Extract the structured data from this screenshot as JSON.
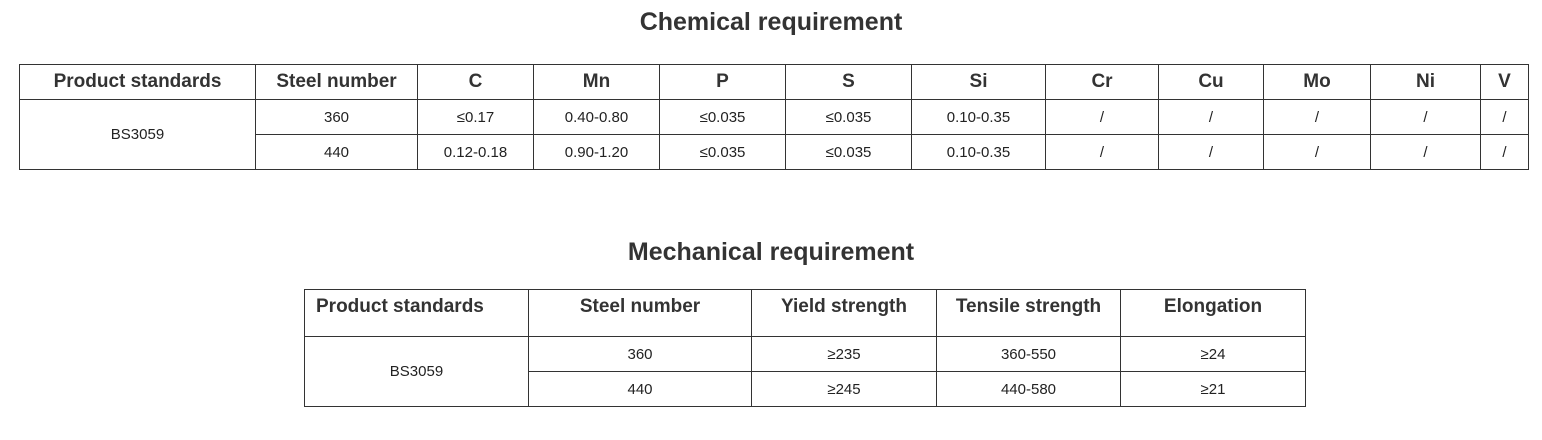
{
  "sections": [
    {
      "title": "Chemical requirement",
      "headers": [
        "Product standards",
        "Steel number",
        "C",
        "Mn",
        "P",
        "S",
        "Si",
        "Cr",
        "Cu",
        "Mo",
        "Ni",
        "V"
      ],
      "standard": "BS3059",
      "rows": [
        [
          "360",
          "≤0.17",
          "0.40-0.80",
          "≤0.035",
          "≤0.035",
          "0.10-0.35",
          "/",
          "/",
          "/",
          "/",
          "/"
        ],
        [
          "440",
          "0.12-0.18",
          "0.90-1.20",
          "≤0.035",
          "≤0.035",
          "0.10-0.35",
          "/",
          "/",
          "/",
          "/",
          "/"
        ]
      ]
    },
    {
      "title": "Mechanical requirement",
      "headers": [
        "Product standards",
        "Steel number",
        "Yield strength",
        "Tensile strength",
        "Elongation"
      ],
      "standard": "BS3059",
      "rows": [
        [
          "360",
          "≥235",
          "360-550",
          "≥24"
        ],
        [
          "440",
          "≥245",
          "440-580",
          "≥21"
        ]
      ]
    }
  ]
}
